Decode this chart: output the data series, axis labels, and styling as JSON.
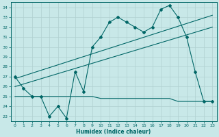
{
  "xlabel": "Humidex (Indice chaleur)",
  "ylabel": "",
  "background_color": "#c8e8e8",
  "grid_color": "#b0d0d0",
  "line_color": "#006666",
  "xlim": [
    -0.5,
    23.5
  ],
  "ylim": [
    22.5,
    34.5
  ],
  "yticks": [
    23,
    24,
    25,
    26,
    27,
    28,
    29,
    30,
    31,
    32,
    33,
    34
  ],
  "xticks": [
    0,
    1,
    2,
    3,
    4,
    5,
    6,
    7,
    8,
    9,
    10,
    11,
    12,
    13,
    14,
    15,
    16,
    17,
    18,
    19,
    20,
    21,
    22,
    23
  ],
  "curve1_x": [
    0,
    1,
    2,
    3,
    4,
    5,
    6,
    7,
    8,
    9,
    10,
    11,
    12,
    13,
    14,
    15,
    16,
    17,
    18,
    19,
    20,
    21,
    22,
    23
  ],
  "curve1_y": [
    27.0,
    25.8,
    25.0,
    25.0,
    23.0,
    24.0,
    22.8,
    27.5,
    25.5,
    30.0,
    31.0,
    32.5,
    33.0,
    32.5,
    32.0,
    31.5,
    32.0,
    33.8,
    34.2,
    33.0,
    31.0,
    27.5,
    24.5,
    24.5
  ],
  "curve2_x": [
    0,
    1,
    2,
    3,
    4,
    5,
    6,
    7,
    8,
    9,
    10,
    11,
    12,
    13,
    14,
    15,
    16,
    17,
    18,
    19,
    20,
    21,
    22,
    23
  ],
  "curve2_y": [
    25.0,
    25.0,
    25.0,
    25.0,
    25.0,
    25.0,
    25.0,
    25.0,
    25.0,
    25.0,
    24.8,
    24.8,
    24.8,
    24.8,
    24.8,
    24.8,
    24.8,
    24.8,
    24.8,
    24.5,
    24.5,
    24.5,
    24.5,
    24.5
  ],
  "trend1_x": [
    0,
    23
  ],
  "trend1_y": [
    26.0,
    32.0
  ],
  "trend2_x": [
    0,
    23
  ],
  "trend2_y": [
    26.8,
    33.2
  ]
}
